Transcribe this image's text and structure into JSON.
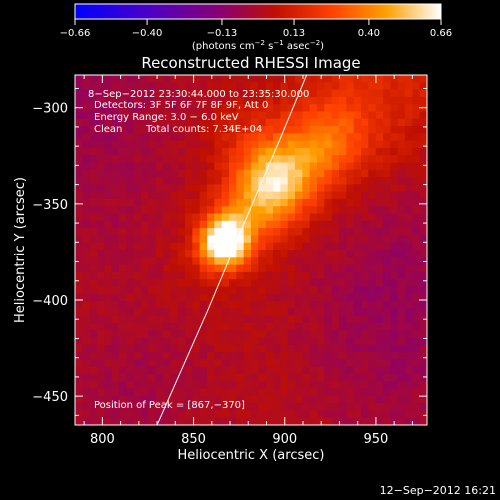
{
  "chart_data": {
    "type": "heatmap",
    "title": "Reconstructed RHESSI Image",
    "xlabel": "Heliocentric X (arcsec)",
    "ylabel": "Heliocentric Y (arcsec)",
    "xlim": [
      785,
      978
    ],
    "ylim": [
      -465,
      -283
    ],
    "x_ticks": [
      800,
      850,
      900,
      950
    ],
    "y_ticks": [
      -300,
      -350,
      -400,
      -450
    ],
    "x_tick_labels": [
      "800",
      "850",
      "900",
      "950"
    ],
    "y_tick_labels": [
      "−300",
      "−350",
      "−400",
      "−450"
    ],
    "colorbar": {
      "min": -0.66,
      "max": 0.66,
      "ticks": [
        -0.66,
        -0.4,
        -0.13,
        0.13,
        0.4,
        0.66
      ],
      "tick_labels": [
        "−0.66",
        "−0.40",
        "−0.13",
        "0.13",
        "0.40",
        "0.66"
      ],
      "unit_text": "(photons cm",
      "unit_exp1": "−2",
      "unit_mid": " s",
      "unit_exp2": "−1",
      "unit_mid2": " asec",
      "unit_exp3": "−2",
      "unit_end": ")",
      "colormap": "blue-purple-red-orange-yellow-white"
    },
    "annotations": {
      "time_range": "8−Sep−2012 23:30:44.000 to 23:35:30.000",
      "detectors": "Detectors: 3F 5F 6F 7F 8F 9F, Att 0",
      "energy": "Energy Range: 3.0 − 6.0 keV",
      "algorithm": "Clean",
      "total_counts": "Total counts: 7.34E+04",
      "peak": "Position of Peak = [867,−370]"
    },
    "peak": {
      "x": 867,
      "y": -370,
      "value": 0.66
    },
    "secondary_emission": [
      {
        "x": 893,
        "y": -338,
        "value": 0.36
      },
      {
        "x": 928,
        "y": -318,
        "value": 0.22
      },
      {
        "x": 880,
        "y": -320,
        "value": 0.18
      }
    ],
    "limb_curve": [
      [
        830,
        -465
      ],
      [
        858,
        -405
      ],
      [
        880,
        -355
      ],
      [
        898,
        -315
      ],
      [
        912,
        -283
      ]
    ],
    "grid": false
  },
  "footer": {
    "date": "12−Sep−2012 16:21"
  }
}
